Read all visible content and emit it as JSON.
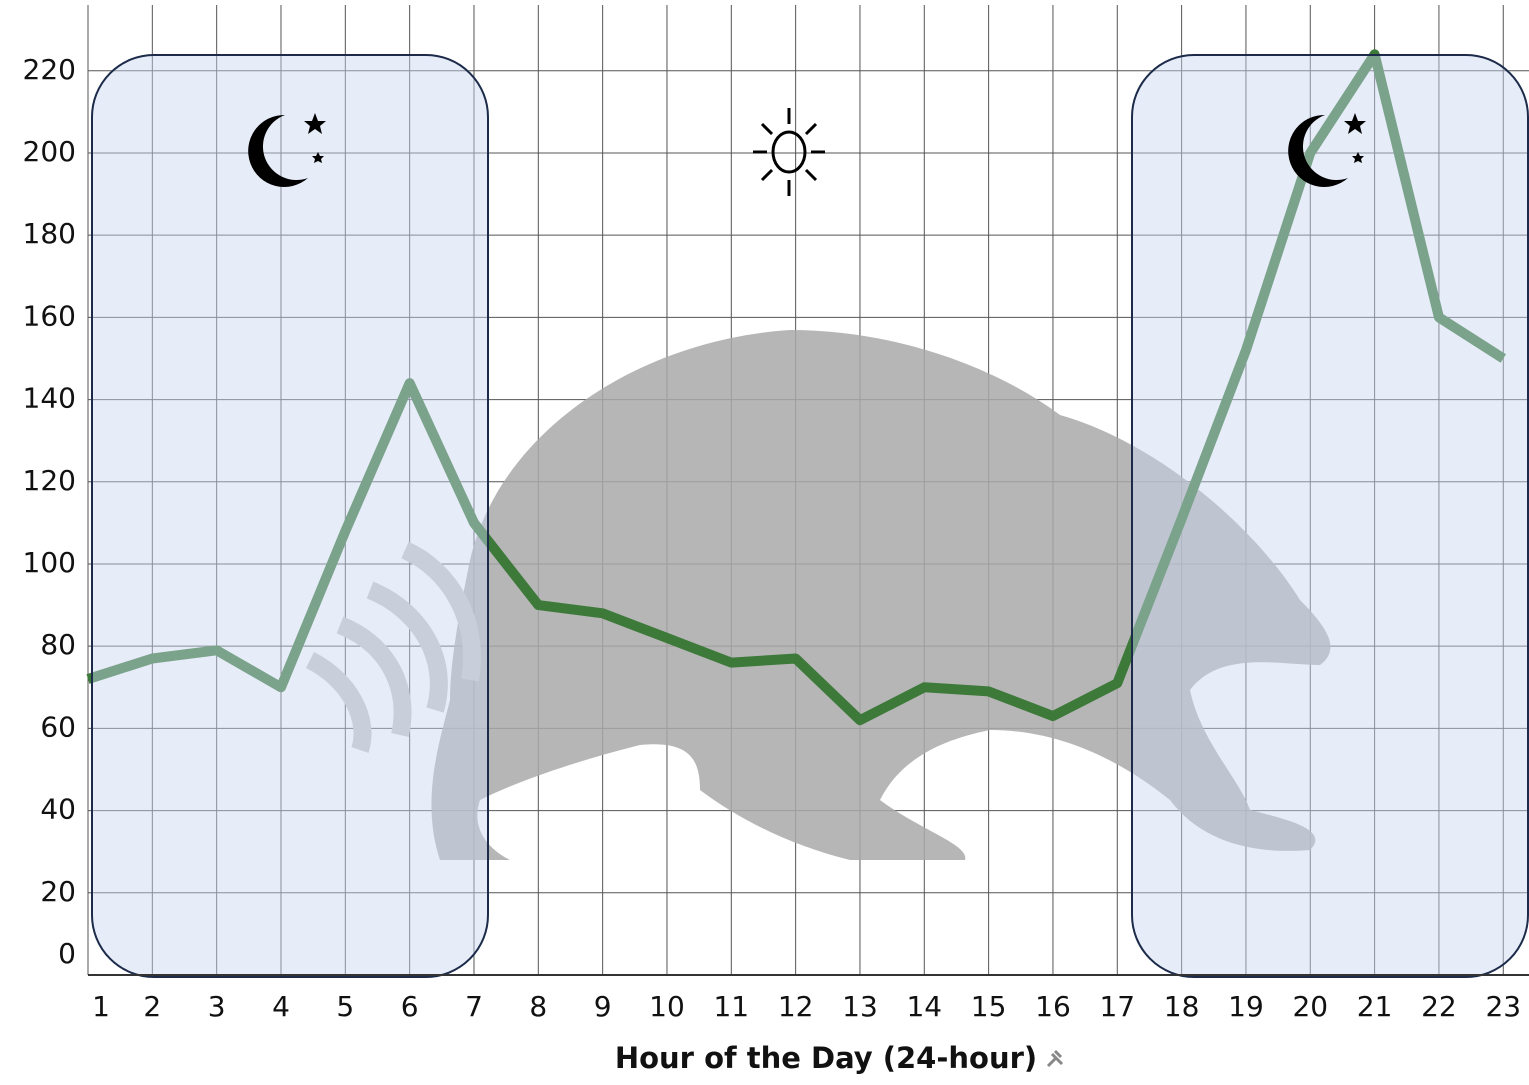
{
  "chart_data": {
    "type": "line",
    "x_label": "Hour of the Day (24-hour)",
    "x": [
      1,
      2,
      3,
      4,
      5,
      6,
      7,
      8,
      9,
      10,
      11,
      12,
      13,
      14,
      15,
      16,
      17,
      18,
      19,
      20,
      21,
      22,
      23
    ],
    "values": [
      72,
      77,
      79,
      70,
      108,
      144,
      110,
      90,
      88,
      82,
      76,
      77,
      62,
      70,
      69,
      63,
      71,
      111,
      152,
      200,
      224,
      160,
      150
    ],
    "color": "#3d7a3a",
    "xlim": [
      1,
      23.4
    ],
    "xticks": [
      1,
      2,
      3,
      4,
      5,
      6,
      7,
      8,
      9,
      10,
      11,
      12,
      13,
      14,
      15,
      16,
      17,
      18,
      19,
      20,
      21,
      22,
      23
    ],
    "ylim": [
      0,
      236
    ],
    "yticks": [
      0,
      20,
      40,
      60,
      80,
      100,
      120,
      140,
      160,
      180,
      200,
      220
    ],
    "grid": true
  }
}
